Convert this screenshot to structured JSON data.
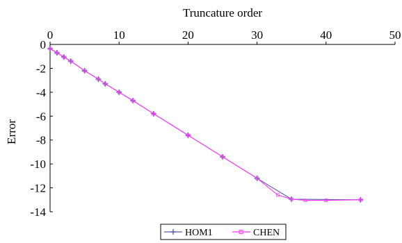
{
  "chart_data": {
    "type": "line",
    "xlabel": "Truncature order",
    "ylabel": "Error",
    "xlim": [
      0,
      50
    ],
    "ylim": [
      -14,
      0
    ],
    "x_ticks": [
      "0",
      "10",
      "20",
      "30",
      "40",
      "50"
    ],
    "y_ticks": [
      "0",
      "-2",
      "-4",
      "-6",
      "-8",
      "-10",
      "-12",
      "-14"
    ],
    "x_axis_position": "top",
    "grid": false,
    "legend_position": "bottom-center",
    "series": [
      {
        "name": "HOM1",
        "color": "#5b5fa8",
        "marker": "plus",
        "x": [
          0,
          1,
          2,
          3,
          5,
          7,
          8,
          10,
          12,
          15,
          20,
          25,
          30,
          35,
          45
        ],
        "y": [
          -0.35,
          -0.7,
          -1.05,
          -1.4,
          -2.2,
          -2.9,
          -3.3,
          -4.0,
          -4.7,
          -5.8,
          -7.6,
          -9.4,
          -11.2,
          -12.95,
          -13.0
        ]
      },
      {
        "name": "CHEN",
        "color": "#ff33ff",
        "marker": "square",
        "x": [
          0,
          1,
          2,
          3,
          5,
          7,
          8,
          10,
          12,
          15,
          20,
          25,
          30,
          33,
          35,
          37,
          40,
          45
        ],
        "y": [
          -0.35,
          -0.7,
          -1.05,
          -1.4,
          -2.2,
          -2.9,
          -3.3,
          -4.0,
          -4.7,
          -5.8,
          -7.6,
          -9.4,
          -11.2,
          -12.6,
          -12.95,
          -13.05,
          -13.05,
          -13.0
        ]
      }
    ]
  }
}
